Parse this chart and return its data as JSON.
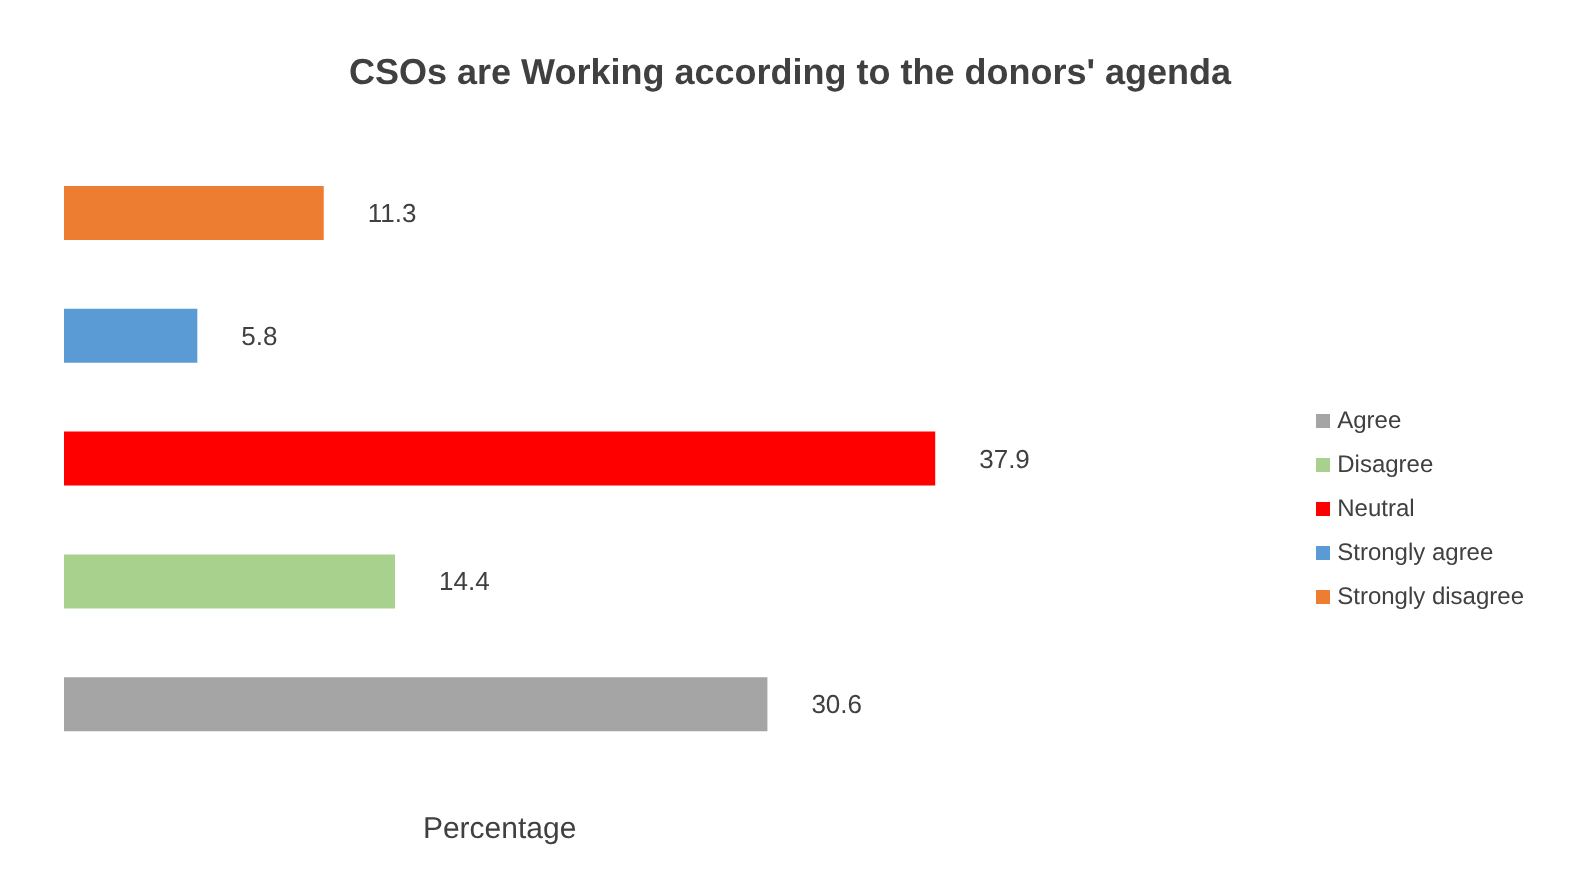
{
  "chart_data": {
    "type": "bar",
    "orientation": "horizontal",
    "stacked": true,
    "title": "CSOs are Working according to the donors' agenda",
    "xlabel": "Percentage",
    "categories": [
      null,
      null,
      null,
      null,
      null
    ],
    "data_labels": true,
    "legend": "right",
    "tick_labels": false,
    "series": [
      {
        "name": "Agree",
        "color": "#a5a5a5",
        "values": [
          null,
          null,
          null,
          null,
          30.6
        ]
      },
      {
        "name": "Disagree",
        "color": "#a9d18e",
        "values": [
          null,
          null,
          null,
          14.4,
          null
        ]
      },
      {
        "name": "Neutral",
        "color": "#ff0000",
        "values": [
          null,
          null,
          37.9,
          null,
          null
        ]
      },
      {
        "name": "Strongly agree",
        "color": "#5b9bd5",
        "values": [
          null,
          5.8,
          null,
          null,
          null
        ]
      },
      {
        "name": "Strongly disagree",
        "color": "#ed7d31",
        "values": [
          11.3,
          null,
          null,
          null,
          null
        ]
      }
    ]
  }
}
